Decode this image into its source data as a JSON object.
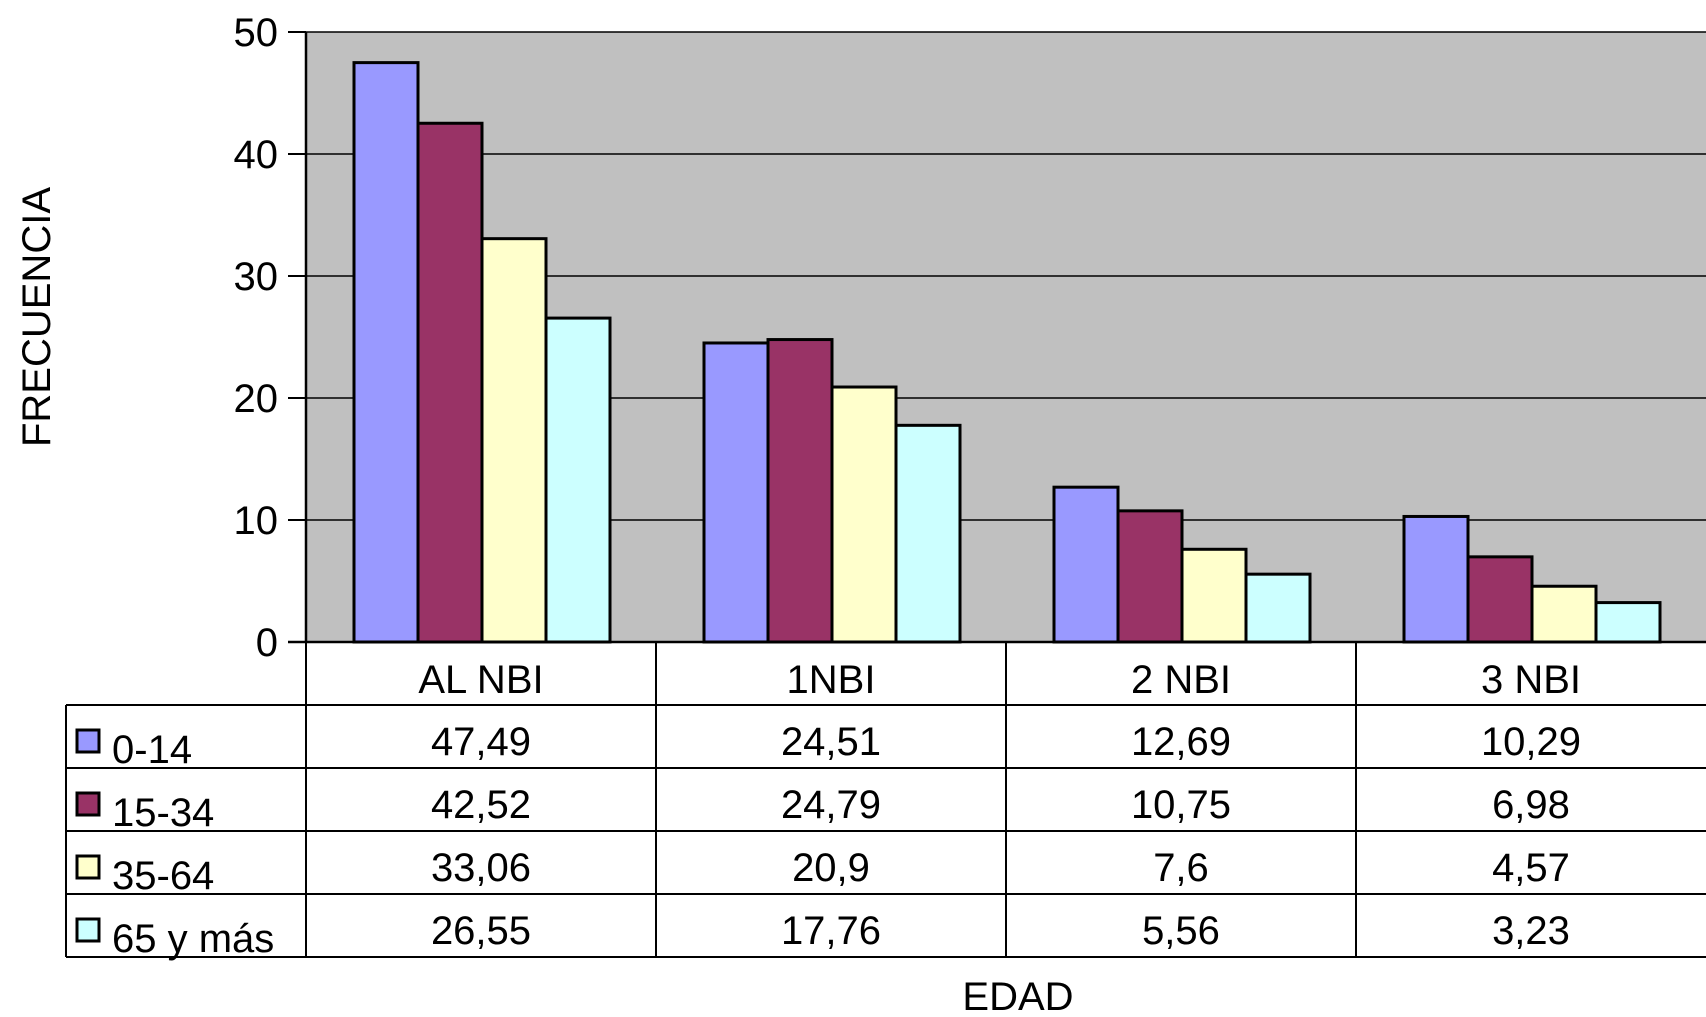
{
  "chart_data": {
    "type": "bar",
    "title": "",
    "xlabel": "EDAD",
    "ylabel": "FRECUENCIA",
    "ylim": [
      0,
      50
    ],
    "yticks": [
      0,
      10,
      20,
      30,
      40,
      50
    ],
    "grid": true,
    "legend": "data-table-left",
    "categories": [
      "AL NBI",
      "1NBI",
      "2 NBI",
      "3 NBI"
    ],
    "series": [
      {
        "name": "0-14",
        "color": "#9999ff",
        "values": [
          47.49,
          24.51,
          12.69,
          10.29
        ],
        "labels": [
          "47,49",
          "24,51",
          "12,69",
          "10,29"
        ]
      },
      {
        "name": "15-34",
        "color": "#993366",
        "values": [
          42.52,
          24.79,
          10.75,
          6.98
        ],
        "labels": [
          "42,52",
          "24,79",
          "10,75",
          "6,98"
        ]
      },
      {
        "name": "35-64",
        "color": "#ffffcc",
        "values": [
          33.06,
          20.9,
          7.6,
          4.57
        ],
        "labels": [
          "33,06",
          "20,9",
          "7,6",
          "4,57"
        ]
      },
      {
        "name": "65 y más",
        "color": "#ccffff",
        "values": [
          26.55,
          17.76,
          5.56,
          3.23
        ],
        "labels": [
          "26,55",
          "17,76",
          "5,56",
          "3,23"
        ]
      }
    ],
    "plot_background": "#c0c0c0"
  }
}
